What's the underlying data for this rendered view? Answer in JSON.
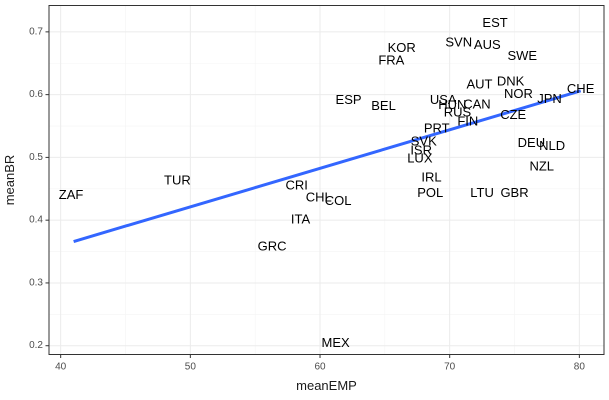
{
  "chart_data": {
    "type": "scatter",
    "title": "",
    "xlabel": "meanEMP",
    "ylabel": "meanBR",
    "xlim": [
      39.1,
      81.9
    ],
    "ylim": [
      0.186,
      0.742
    ],
    "x_ticks": [
      40,
      50,
      60,
      70,
      80
    ],
    "y_ticks": [
      0.2,
      0.3,
      0.4,
      0.5,
      0.6,
      0.7
    ],
    "x_tick_labels": [
      "40",
      "50",
      "60",
      "70",
      "80"
    ],
    "y_tick_labels": [
      "0.2",
      "0.3",
      "0.4",
      "0.5",
      "0.6",
      "0.7"
    ],
    "grid": true,
    "marker": "country code text",
    "points": [
      {
        "label": "EST",
        "x": 73.5,
        "y": 0.715
      },
      {
        "label": "SVN",
        "x": 70.7,
        "y": 0.684
      },
      {
        "label": "AUS",
        "x": 72.9,
        "y": 0.68
      },
      {
        "label": "KOR",
        "x": 66.3,
        "y": 0.675
      },
      {
        "label": "FRA",
        "x": 65.5,
        "y": 0.655
      },
      {
        "label": "SWE",
        "x": 75.6,
        "y": 0.662
      },
      {
        "label": "DNK",
        "x": 74.7,
        "y": 0.622
      },
      {
        "label": "AUT",
        "x": 72.3,
        "y": 0.617
      },
      {
        "label": "NOR",
        "x": 75.3,
        "y": 0.602
      },
      {
        "label": "CHE",
        "x": 80.1,
        "y": 0.61
      },
      {
        "label": "JPN",
        "x": 77.7,
        "y": 0.594
      },
      {
        "label": "ESP",
        "x": 62.2,
        "y": 0.592
      },
      {
        "label": "BEL",
        "x": 64.9,
        "y": 0.583
      },
      {
        "label": "USA",
        "x": 69.5,
        "y": 0.592
      },
      {
        "label": "HUN",
        "x": 70.2,
        "y": 0.584
      },
      {
        "label": "CAN",
        "x": 72.1,
        "y": 0.585
      },
      {
        "label": "RUS",
        "x": 70.6,
        "y": 0.572
      },
      {
        "label": "CZE",
        "x": 74.9,
        "y": 0.568
      },
      {
        "label": "FIN",
        "x": 71.4,
        "y": 0.558
      },
      {
        "label": "PRT",
        "x": 69.0,
        "y": 0.547
      },
      {
        "label": "SVK",
        "x": 68.0,
        "y": 0.526
      },
      {
        "label": "ISR",
        "x": 67.8,
        "y": 0.512
      },
      {
        "label": "LUX",
        "x": 67.7,
        "y": 0.499
      },
      {
        "label": "DEU",
        "x": 76.3,
        "y": 0.524
      },
      {
        "label": "NLD",
        "x": 77.9,
        "y": 0.519
      },
      {
        "label": "NZL",
        "x": 77.1,
        "y": 0.486
      },
      {
        "label": "IRL",
        "x": 68.6,
        "y": 0.469
      },
      {
        "label": "POL",
        "x": 68.5,
        "y": 0.444
      },
      {
        "label": "LTU",
        "x": 72.5,
        "y": 0.444
      },
      {
        "label": "GBR",
        "x": 75.0,
        "y": 0.444
      },
      {
        "label": "ZAF",
        "x": 40.8,
        "y": 0.441
      },
      {
        "label": "TUR",
        "x": 49.0,
        "y": 0.464
      },
      {
        "label": "CRI",
        "x": 58.2,
        "y": 0.456
      },
      {
        "label": "CHL",
        "x": 59.9,
        "y": 0.437
      },
      {
        "label": "COL",
        "x": 61.4,
        "y": 0.431
      },
      {
        "label": "ITA",
        "x": 58.5,
        "y": 0.402
      },
      {
        "label": "GRC",
        "x": 56.3,
        "y": 0.359
      },
      {
        "label": "MEX",
        "x": 61.2,
        "y": 0.205
      }
    ],
    "fit_line": {
      "x": [
        41.0,
        80.1
      ],
      "y": [
        0.366,
        0.606
      ],
      "color": "#3366ff"
    }
  }
}
